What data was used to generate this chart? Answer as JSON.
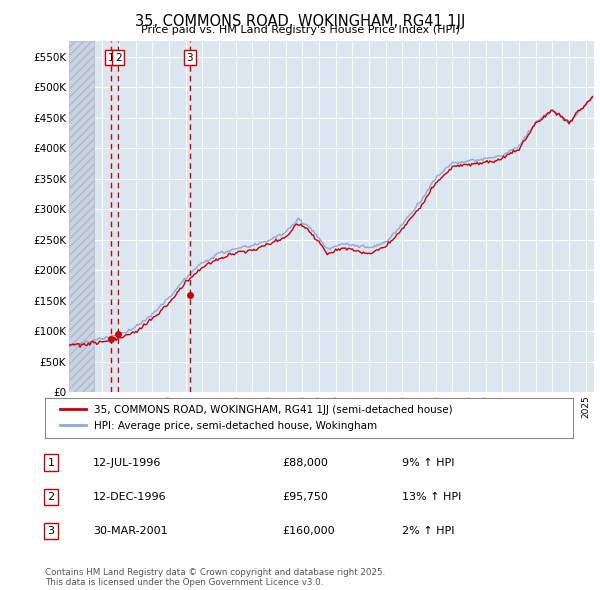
{
  "title": "35, COMMONS ROAD, WOKINGHAM, RG41 1JJ",
  "subtitle": "Price paid vs. HM Land Registry's House Price Index (HPI)",
  "ylabel_ticks": [
    "£0",
    "£50K",
    "£100K",
    "£150K",
    "£200K",
    "£250K",
    "£300K",
    "£350K",
    "£400K",
    "£450K",
    "£500K",
    "£550K"
  ],
  "ytick_values": [
    0,
    50000,
    100000,
    150000,
    200000,
    250000,
    300000,
    350000,
    400000,
    450000,
    500000,
    550000
  ],
  "ylim": [
    0,
    575000
  ],
  "xlim_start": 1994.0,
  "xlim_end": 2025.5,
  "background_color": "#ffffff",
  "plot_bg_color": "#dce6f1",
  "grid_color": "#ffffff",
  "sale_dates": [
    1996.53,
    1996.95,
    2001.24
  ],
  "sale_prices": [
    88000,
    95750,
    160000
  ],
  "vertical_line_dates": [
    1996.53,
    1996.95,
    2001.24
  ],
  "legend_line1": "35, COMMONS ROAD, WOKINGHAM, RG41 1JJ (semi-detached house)",
  "legend_line2": "HPI: Average price, semi-detached house, Wokingham",
  "table_entries": [
    {
      "num": "1",
      "date": "12-JUL-1996",
      "price": "£88,000",
      "hpi": "9% ↑ HPI"
    },
    {
      "num": "2",
      "date": "12-DEC-1996",
      "price": "£95,750",
      "hpi": "13% ↑ HPI"
    },
    {
      "num": "3",
      "date": "30-MAR-2001",
      "price": "£160,000",
      "hpi": "2% ↑ HPI"
    }
  ],
  "footnote": "Contains HM Land Registry data © Crown copyright and database right 2025.\nThis data is licensed under the Open Government Licence v3.0.",
  "line_color_price": "#cc0000",
  "line_color_hpi": "#88aadd",
  "vline_color": "#cc0000",
  "hatch_xlim": [
    1994.0,
    1995.5
  ]
}
